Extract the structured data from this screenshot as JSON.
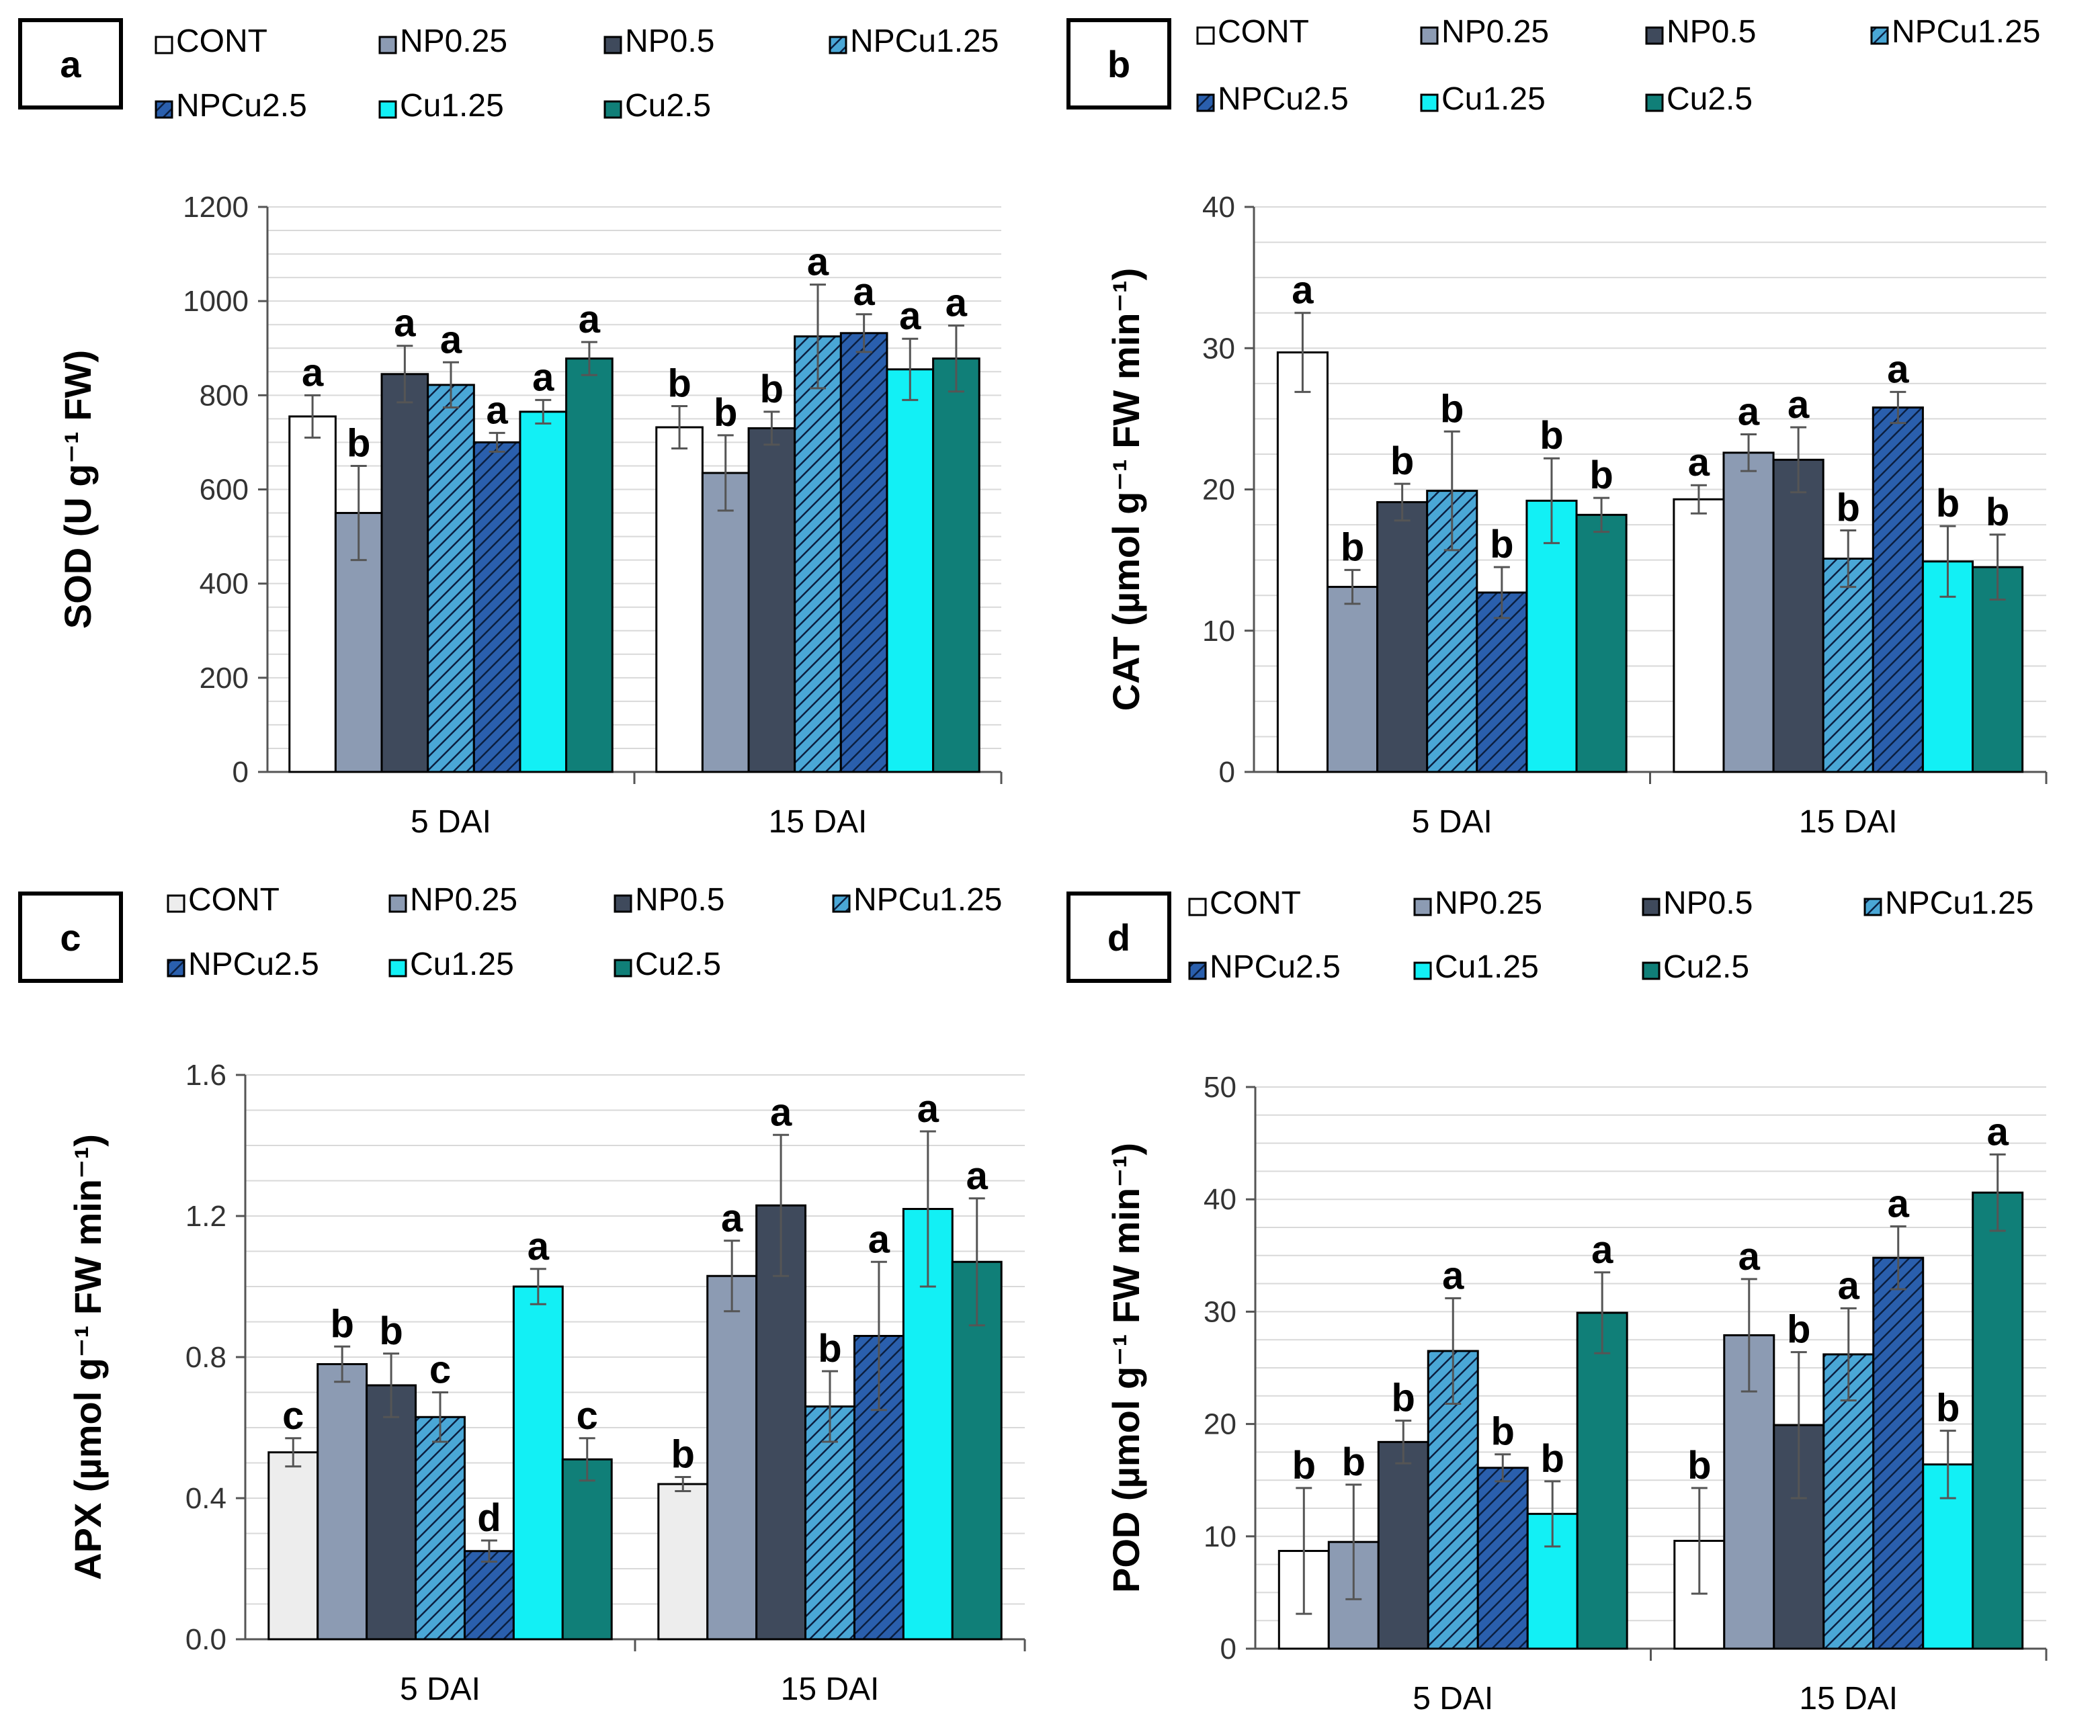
{
  "chart_data": [
    {
      "id": "a",
      "type": "bar",
      "panel_label": "a",
      "ylabel": "SOD (U g⁻¹ FW)",
      "ylim": [
        0,
        1200
      ],
      "yticks": [
        0,
        200,
        400,
        600,
        800,
        1000,
        1200
      ],
      "tick_format": "int",
      "categories": [
        "5 DAI",
        "15 DAI"
      ],
      "series": [
        {
          "name": "CONT",
          "values": [
            755,
            732
          ],
          "errors": [
            45,
            45
          ],
          "letters": [
            "a",
            "b"
          ]
        },
        {
          "name": "NP0.25",
          "values": [
            550,
            635
          ],
          "errors": [
            100,
            80
          ],
          "letters": [
            "b",
            "b"
          ]
        },
        {
          "name": "NP0.5",
          "values": [
            845,
            730
          ],
          "errors": [
            60,
            35
          ],
          "letters": [
            "a",
            "b"
          ]
        },
        {
          "name": "NPCu1.25",
          "values": [
            822,
            925
          ],
          "errors": [
            48,
            110
          ],
          "letters": [
            "a",
            "a"
          ]
        },
        {
          "name": "NPCu2.5",
          "values": [
            700,
            932
          ],
          "errors": [
            20,
            40
          ],
          "letters": [
            "a",
            "a"
          ]
        },
        {
          "name": "Cu1.25",
          "values": [
            765,
            855
          ],
          "errors": [
            25,
            65
          ],
          "letters": [
            "a",
            "a"
          ]
        },
        {
          "name": "Cu2.5",
          "values": [
            878,
            878
          ],
          "errors": [
            35,
            70
          ],
          "letters": [
            "a",
            "a"
          ]
        }
      ]
    },
    {
      "id": "b",
      "type": "bar",
      "panel_label": "b",
      "ylabel": "CAT (µmol g⁻¹ FW min⁻¹)",
      "ylim": [
        0,
        40
      ],
      "yticks": [
        0,
        10,
        20,
        30,
        40
      ],
      "tick_format": "int",
      "categories": [
        "5 DAI",
        "15 DAI"
      ],
      "series": [
        {
          "name": "CONT",
          "values": [
            29.7,
            19.3
          ],
          "errors": [
            2.8,
            1.0
          ],
          "letters": [
            "a",
            "a"
          ]
        },
        {
          "name": "NP0.25",
          "values": [
            13.1,
            22.6
          ],
          "errors": [
            1.2,
            1.3
          ],
          "letters": [
            "b",
            "a"
          ]
        },
        {
          "name": "NP0.5",
          "values": [
            19.1,
            22.1
          ],
          "errors": [
            1.3,
            2.3
          ],
          "letters": [
            "b",
            "a"
          ]
        },
        {
          "name": "NPCu1.25",
          "values": [
            19.9,
            15.1
          ],
          "errors": [
            4.2,
            2.0
          ],
          "letters": [
            "b",
            "b"
          ]
        },
        {
          "name": "NPCu2.5",
          "values": [
            12.7,
            25.8
          ],
          "errors": [
            1.8,
            1.1
          ],
          "letters": [
            "b",
            "a"
          ]
        },
        {
          "name": "Cu1.25",
          "values": [
            19.2,
            14.9
          ],
          "errors": [
            3.0,
            2.5
          ],
          "letters": [
            "b",
            "b"
          ]
        },
        {
          "name": "Cu2.5",
          "values": [
            18.2,
            14.5
          ],
          "errors": [
            1.2,
            2.3
          ],
          "letters": [
            "b",
            "b"
          ]
        }
      ]
    },
    {
      "id": "c",
      "type": "bar",
      "panel_label": "c",
      "ylabel": "APX (µmol g⁻¹ FW min⁻¹)",
      "ylim": [
        0,
        1.6
      ],
      "yticks": [
        0,
        0.4,
        0.8,
        1.2,
        1.6
      ],
      "tick_format": "dec1",
      "categories": [
        "5 DAI",
        "15 DAI"
      ],
      "series": [
        {
          "name": "CONT",
          "values": [
            0.53,
            0.44
          ],
          "errors": [
            0.04,
            0.02
          ],
          "letters": [
            "c",
            "b"
          ]
        },
        {
          "name": "NP0.25",
          "values": [
            0.78,
            1.03
          ],
          "errors": [
            0.05,
            0.1
          ],
          "letters": [
            "b",
            "a"
          ]
        },
        {
          "name": "NP0.5",
          "values": [
            0.72,
            1.23
          ],
          "errors": [
            0.09,
            0.2
          ],
          "letters": [
            "b",
            "a"
          ]
        },
        {
          "name": "NPCu1.25",
          "values": [
            0.63,
            0.66
          ],
          "errors": [
            0.07,
            0.1
          ],
          "letters": [
            "c",
            "b"
          ]
        },
        {
          "name": "NPCu2.5",
          "values": [
            0.25,
            0.86
          ],
          "errors": [
            0.03,
            0.21
          ],
          "letters": [
            "d",
            "a"
          ]
        },
        {
          "name": "Cu1.25",
          "values": [
            1.0,
            1.22
          ],
          "errors": [
            0.05,
            0.22
          ],
          "letters": [
            "a",
            "a"
          ]
        },
        {
          "name": "Cu2.5",
          "values": [
            0.51,
            1.07
          ],
          "errors": [
            0.06,
            0.18
          ],
          "letters": [
            "c",
            "a"
          ]
        }
      ]
    },
    {
      "id": "d",
      "type": "bar",
      "panel_label": "d",
      "ylabel": "POD (µmol g⁻¹ FW min⁻¹)",
      "ylim": [
        0,
        50
      ],
      "yticks": [
        0,
        10,
        20,
        30,
        40,
        50
      ],
      "tick_format": "int",
      "categories": [
        "5 DAI",
        "15 DAI"
      ],
      "series": [
        {
          "name": "CONT",
          "values": [
            8.7,
            9.6
          ],
          "errors": [
            5.6,
            4.7
          ],
          "letters": [
            "b",
            "b"
          ]
        },
        {
          "name": "NP0.25",
          "values": [
            9.5,
            27.9
          ],
          "errors": [
            5.1,
            5.0
          ],
          "letters": [
            "b",
            "a"
          ]
        },
        {
          "name": "NP0.5",
          "values": [
            18.4,
            19.9
          ],
          "errors": [
            1.9,
            6.5
          ],
          "letters": [
            "b",
            "b"
          ]
        },
        {
          "name": "NPCu1.25",
          "values": [
            26.5,
            26.2
          ],
          "errors": [
            4.7,
            4.1
          ],
          "letters": [
            "a",
            "a"
          ]
        },
        {
          "name": "NPCu2.5",
          "values": [
            16.1,
            34.8
          ],
          "errors": [
            1.2,
            2.8
          ],
          "letters": [
            "b",
            "a"
          ]
        },
        {
          "name": "Cu1.25",
          "values": [
            12.0,
            16.4
          ],
          "errors": [
            2.9,
            3.0
          ],
          "letters": [
            "b",
            "b"
          ]
        },
        {
          "name": "Cu2.5",
          "values": [
            29.9,
            40.6
          ],
          "errors": [
            3.6,
            3.4
          ],
          "letters": [
            "a",
            "a"
          ]
        }
      ]
    }
  ],
  "legend": [
    {
      "name": "CONT",
      "fill": "#ffffff",
      "hatch": false
    },
    {
      "name": "NP0.25",
      "fill": "#8c9bb3",
      "hatch": false
    },
    {
      "name": "NP0.5",
      "fill": "#3f4a5c",
      "hatch": false
    },
    {
      "name": "NPCu1.25",
      "fill": "#4aa7d6",
      "hatch": true
    },
    {
      "name": "NPCu2.5",
      "fill": "#2a5fad",
      "hatch": true
    },
    {
      "name": "Cu1.25",
      "fill": "#12f0f5",
      "hatch": false
    },
    {
      "name": "Cu2.5",
      "fill": "#107f78",
      "hatch": false
    }
  ],
  "colors": {
    "bar_outline": "#000000",
    "cont_fill_panel_c": "#ededed",
    "gridline": "#d9d9d9",
    "axis": "#555555",
    "error_bar": "#555555",
    "hatch_line": "#0b1f40"
  }
}
